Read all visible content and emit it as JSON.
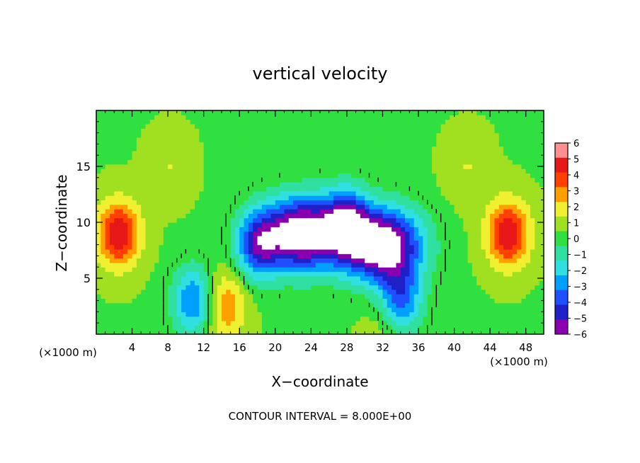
{
  "chart_data": {
    "type": "heatmap",
    "title": "vertical velocity",
    "xlabel": "X−coordinate",
    "ylabel": "Z−coordinate",
    "x_unit_left": "(×1000 m)",
    "x_unit_right": "(×1000 m)",
    "xlim": [
      0,
      50
    ],
    "ylim": [
      0,
      20
    ],
    "xticks": [
      4,
      8,
      12,
      16,
      20,
      24,
      28,
      32,
      36,
      40,
      44,
      48
    ],
    "xtick_labels": [
      "4",
      "8",
      "12",
      "16",
      "20",
      "24",
      "28",
      "32",
      "36",
      "40",
      "44",
      "48"
    ],
    "yticks": [
      5,
      10,
      15
    ],
    "ytick_labels": [
      "5",
      "10",
      "15"
    ],
    "colorbar": {
      "min": -6,
      "max": 6,
      "ticks": [
        6,
        5,
        4,
        3,
        2,
        1,
        0,
        -1,
        -2,
        -3,
        -4,
        -5,
        -6
      ],
      "tick_labels": [
        "6",
        "5",
        "4",
        "3",
        "2",
        "1",
        "0",
        "−1",
        "−2",
        "−3",
        "−4",
        "−5",
        "−6"
      ],
      "colors": [
        "#8a00b0",
        "#2020c8",
        "#1e50ff",
        "#00a0ff",
        "#30e0e0",
        "#30e0a0",
        "#30e040",
        "#a0e020",
        "#f0f030",
        "#ffa000",
        "#ff4000",
        "#e81818",
        "#ff9090"
      ]
    },
    "contour_interval_label": "CONTOUR INTERVAL = 8.000E+00",
    "features": [
      {
        "x": 2.5,
        "z": 9,
        "w": 4.5
      },
      {
        "x": 46,
        "z": 9,
        "w": 4.5
      },
      {
        "x": 14.2,
        "z": 2.6,
        "w": 3
      },
      {
        "x": 32.3,
        "z": 0.9,
        "w": 1
      },
      {
        "x": 8.2,
        "z": 15,
        "w": 1
      },
      {
        "x": 41.5,
        "z": 15,
        "w": 1
      },
      {
        "x": 23,
        "z": 9,
        "w": -8
      },
      {
        "x": 32,
        "z": 8,
        "w": -8
      },
      {
        "x": 18,
        "z": 8,
        "w": -4.5
      },
      {
        "x": 28,
        "z": 10,
        "w": -5
      },
      {
        "x": 11,
        "z": 3,
        "w": -4
      },
      {
        "x": 34,
        "z": 3,
        "w": -4
      }
    ]
  }
}
